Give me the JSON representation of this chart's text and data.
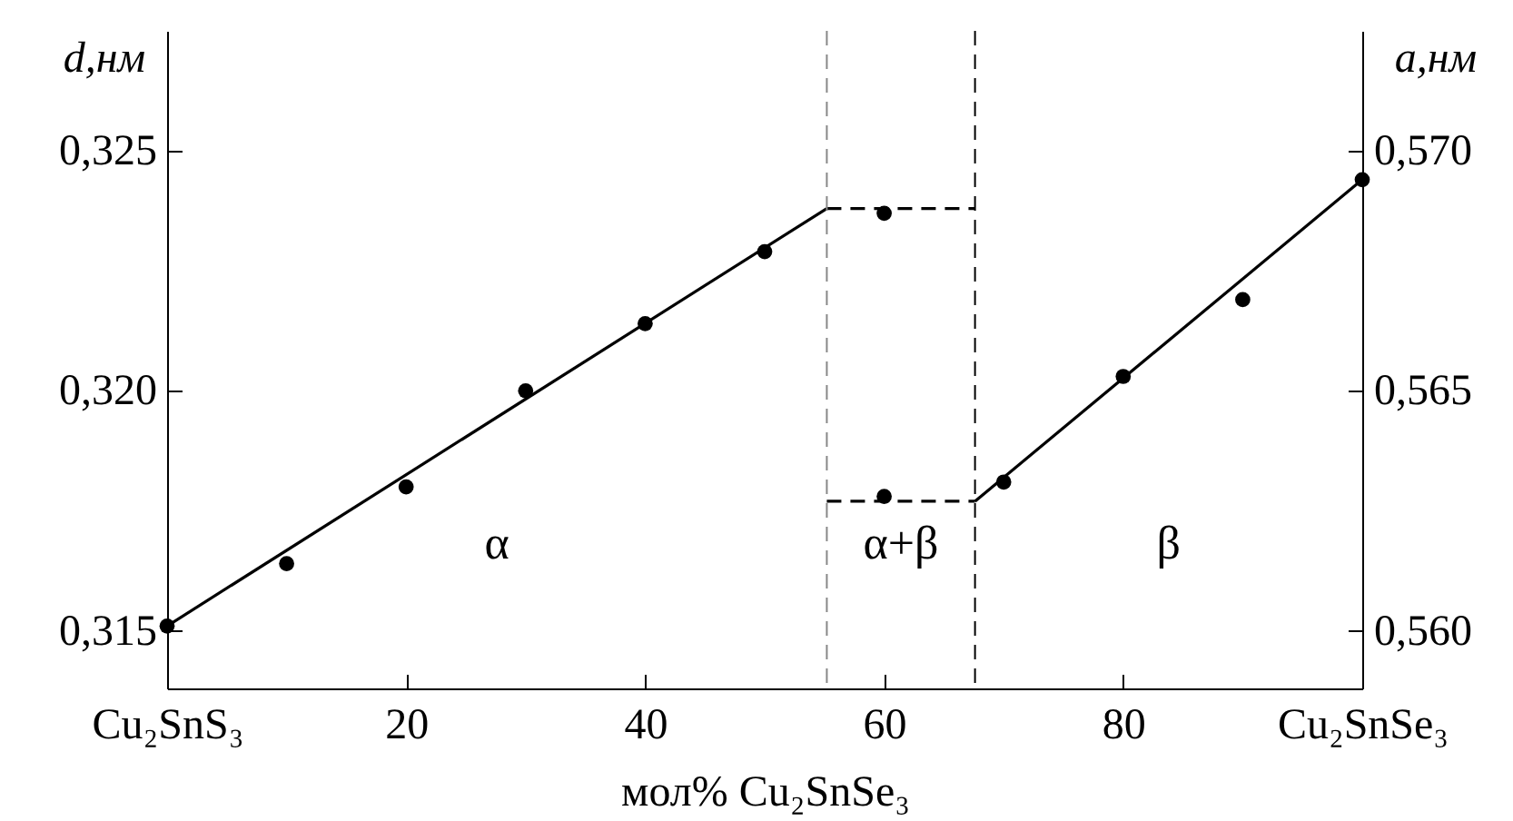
{
  "chart_data": {
    "type": "scatter",
    "xlabel": "мол% Cu₂SnSe₃",
    "ylabel": "d,нм",
    "y2label": "a,нм",
    "xlim": [
      0,
      100
    ],
    "xticks": [
      {
        "value": 0,
        "label": "Cu₂SnS₃"
      },
      20,
      40,
      60,
      80,
      {
        "value": 100,
        "label": "Cu₂SnSe₃"
      }
    ],
    "ylim": [
      0.3138,
      0.3275
    ],
    "yticks": [
      {
        "value": 0.315,
        "label": "0,315"
      },
      {
        "value": 0.32,
        "label": "0,320"
      },
      {
        "value": 0.325,
        "label": "0,325"
      }
    ],
    "y2lim": [
      0.5588,
      0.5725
    ],
    "y2ticks": [
      {
        "value": 0.56,
        "label": "0,560"
      },
      {
        "value": 0.565,
        "label": "0,565"
      },
      {
        "value": 0.57,
        "label": "0,570"
      }
    ],
    "grid": false,
    "series": [
      {
        "marker": "circle",
        "color": "#000000",
        "x": [
          0,
          10,
          20,
          30,
          40,
          50,
          60
        ],
        "values": [
          0.3151,
          0.3164,
          0.318,
          0.32,
          0.3214,
          0.3229,
          0.3237
        ]
      },
      {
        "marker": "circle",
        "color": "#000000",
        "axis": "y2",
        "x": [
          60,
          70,
          80,
          90,
          100
        ],
        "values": [
          0.5628,
          0.5631,
          0.5653,
          0.5669,
          0.5694
        ]
      },
      {
        "type": "line",
        "color": "#000000",
        "line_style": "solid",
        "x": [
          0,
          55.2
        ],
        "values": [
          0.3151,
          0.3238
        ]
      },
      {
        "type": "line",
        "color": "#000000",
        "line_style": "dashed",
        "x": [
          55.2,
          67.6
        ],
        "values": [
          0.3238,
          0.3238
        ]
      },
      {
        "type": "line",
        "color": "#000000",
        "line_style": "dashed",
        "axis": "y2",
        "x": [
          55.2,
          67.6
        ],
        "values": [
          0.5627,
          0.5627
        ]
      },
      {
        "type": "line",
        "color": "#000000",
        "line_style": "solid",
        "axis": "y2",
        "x": [
          67.6,
          100
        ],
        "values": [
          0.5627,
          0.5694
        ]
      }
    ],
    "ref_lines": [
      {
        "axis": "x",
        "value": 55.2,
        "color": "#888888",
        "line_style": "dashed"
      },
      {
        "axis": "x",
        "value": 67.6,
        "color": "#000000",
        "line_style": "dashed"
      }
    ],
    "annotations": [
      "α",
      "α+β",
      "β"
    ]
  }
}
